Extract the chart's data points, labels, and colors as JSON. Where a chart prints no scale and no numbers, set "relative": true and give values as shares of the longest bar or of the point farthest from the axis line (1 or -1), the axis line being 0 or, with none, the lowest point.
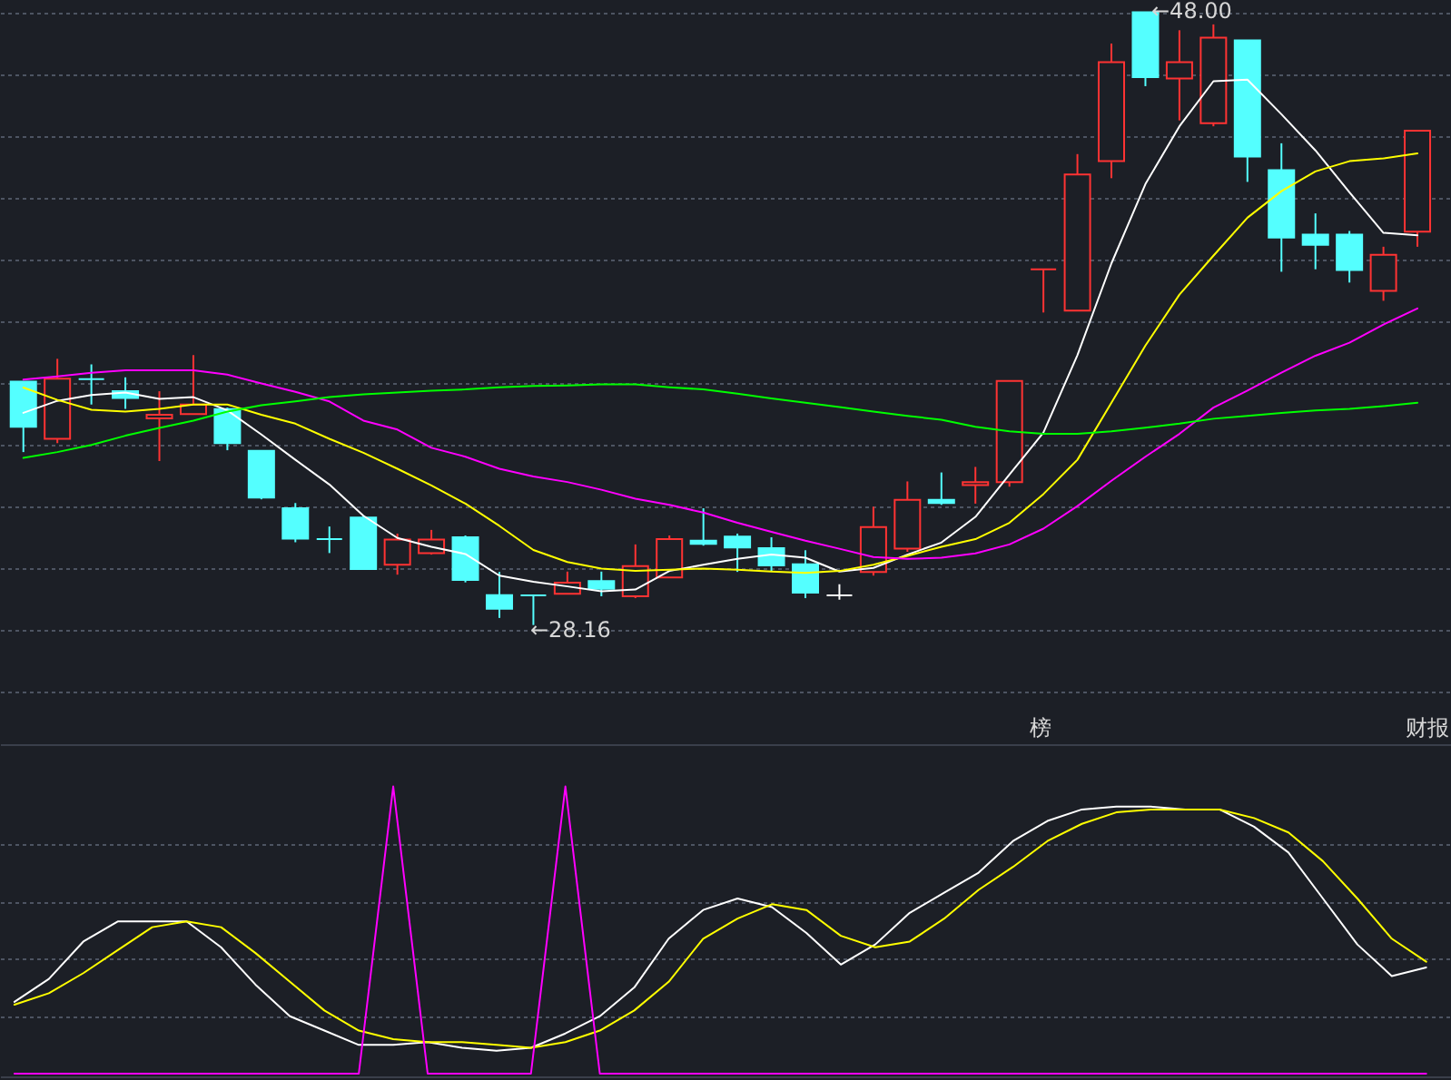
{
  "chart_data": [
    {
      "type": "candlestick",
      "categories": [
        null,
        null,
        null,
        null,
        null,
        null,
        null,
        null,
        null,
        null,
        null,
        null,
        null,
        null,
        null,
        null,
        null,
        null,
        null,
        null,
        null,
        null,
        null,
        null,
        null,
        null,
        null,
        null,
        null,
        null,
        null,
        null,
        null,
        null,
        null,
        null,
        null,
        null,
        null,
        null,
        null,
        null
      ],
      "ohlc": [
        [
          36.04,
          36.04,
          33.76,
          34.58
        ],
        [
          34.19,
          36.78,
          34.05,
          36.14
        ],
        [
          36.12,
          36.6,
          35.3,
          36.12
        ],
        [
          35.73,
          36.18,
          35.16,
          35.51
        ],
        [
          34.85,
          35.73,
          33.47,
          34.97
        ],
        [
          34.99,
          36.9,
          34.99,
          35.3
        ],
        [
          35.15,
          35.2,
          33.82,
          34.05
        ],
        [
          33.8,
          33.8,
          32.23,
          32.29
        ],
        [
          31.94,
          32.11,
          30.84,
          30.96
        ],
        [
          30.94,
          31.35,
          30.49,
          30.94
        ],
        [
          31.64,
          31.7,
          29.97,
          29.97
        ],
        [
          30.11,
          31.12,
          29.79,
          30.93
        ],
        [
          30.49,
          31.24,
          30.44,
          30.93
        ],
        [
          31.0,
          31.06,
          29.54,
          29.62
        ],
        [
          29.13,
          29.88,
          28.39,
          28.69
        ],
        [
          29.12,
          29.12,
          28.16,
          29.12
        ],
        [
          29.17,
          29.89,
          29.17,
          29.53
        ],
        [
          29.58,
          29.89,
          29.09,
          29.33
        ],
        [
          29.09,
          30.77,
          29.03,
          30.07
        ],
        [
          29.7,
          31.06,
          29.7,
          30.94
        ],
        [
          30.89,
          31.94,
          30.73,
          30.79
        ],
        [
          31.02,
          31.12,
          29.88,
          30.67
        ],
        [
          30.65,
          31.0,
          29.89,
          30.09
        ],
        [
          30.13,
          30.58,
          29.03,
          29.21
        ],
        [
          29.12,
          29.48,
          28.98,
          29.12
        ],
        [
          29.88,
          31.99,
          29.76,
          31.33
        ],
        [
          30.63,
          32.81,
          30.53,
          32.21
        ],
        [
          32.21,
          33.1,
          32.05,
          32.11
        ],
        [
          32.69,
          33.28,
          32.09,
          32.79
        ],
        [
          32.79,
          36.06,
          32.64,
          36.06
        ],
        [
          39.68,
          39.68,
          38.28,
          39.68
        ],
        [
          38.34,
          43.41,
          38.34,
          42.75
        ],
        [
          43.18,
          46.99,
          42.63,
          46.39
        ],
        [
          48.0,
          48.0,
          45.61,
          45.9
        ],
        [
          45.86,
          47.42,
          44.5,
          46.39
        ],
        [
          44.41,
          47.61,
          44.31,
          47.18
        ],
        [
          47.09,
          47.09,
          42.51,
          43.33
        ],
        [
          42.89,
          43.76,
          39.6,
          40.71
        ],
        [
          40.8,
          41.49,
          39.68,
          40.47
        ],
        [
          40.8,
          40.92,
          39.25,
          39.66
        ],
        [
          38.98,
          40.41,
          38.66,
          40.15
        ],
        [
          40.9,
          44.17,
          40.41,
          44.17
        ]
      ],
      "colors": [
        "#54ffff",
        "#ff3333",
        "#54ffff",
        "#54ffff",
        "#ff3333",
        "#ff3333",
        "#54ffff",
        "#54ffff",
        "#54ffff",
        "#54ffff",
        "#54ffff",
        "#ff3333",
        "#ff3333",
        "#54ffff",
        "#54ffff",
        "#54ffff",
        "#ff3333",
        "#54ffff",
        "#ff3333",
        "#ff3333",
        "#54ffff",
        "#54ffff",
        "#54ffff",
        "#54ffff",
        "#ffffff",
        "#ff3333",
        "#ff3333",
        "#54ffff",
        "#ff3333",
        "#ff3333",
        "#ff3333",
        "#ff3333",
        "#ff3333",
        "#54ffff",
        "#ff3333",
        "#ff3333",
        "#54ffff",
        "#54ffff",
        "#54ffff",
        "#54ffff",
        "#ff3333",
        "#ff3333"
      ],
      "series": [
        {
          "type": "line",
          "color": "#ffffff",
          "values": [
            35.03,
            35.42,
            35.61,
            35.69,
            35.48,
            35.54,
            35.11,
            34.33,
            33.51,
            32.71,
            31.7,
            30.98,
            30.69,
            30.46,
            29.76,
            29.56,
            29.41,
            29.25,
            29.31,
            29.91,
            30.11,
            30.3,
            30.44,
            30.34,
            29.89,
            30.01,
            30.44,
            30.83,
            31.66,
            33.03,
            34.39,
            36.9,
            39.87,
            42.44,
            44.31,
            45.77,
            45.82,
            44.7,
            43.53,
            42.17,
            40.86,
            40.78
          ]
        },
        {
          "type": "line",
          "color": "#ffff00",
          "values": [
            35.85,
            35.45,
            35.13,
            35.07,
            35.16,
            35.3,
            35.3,
            34.97,
            34.68,
            34.19,
            33.74,
            33.22,
            32.68,
            32.09,
            31.37,
            30.59,
            30.2,
            29.99,
            29.91,
            29.95,
            29.99,
            29.95,
            29.89,
            29.85,
            29.91,
            30.11,
            30.4,
            30.69,
            30.94,
            31.47,
            32.4,
            33.51,
            35.36,
            37.21,
            38.86,
            40.12,
            41.35,
            42.21,
            42.85,
            43.18,
            43.27,
            43.43
          ]
        },
        {
          "type": "line",
          "color": "#ff00ff",
          "values": [
            36.11,
            36.21,
            36.33,
            36.41,
            36.41,
            36.41,
            36.27,
            35.98,
            35.71,
            35.4,
            34.78,
            34.49,
            33.9,
            33.61,
            33.22,
            32.97,
            32.79,
            32.54,
            32.25,
            32.05,
            31.8,
            31.47,
            31.18,
            30.89,
            30.63,
            30.36,
            30.3,
            30.34,
            30.48,
            30.77,
            31.28,
            32.01,
            32.83,
            33.61,
            34.35,
            35.2,
            35.75,
            36.33,
            36.88,
            37.3,
            37.89,
            38.41
          ]
        },
        {
          "type": "line",
          "color": "#00ff00",
          "values": [
            33.57,
            33.76,
            33.99,
            34.29,
            34.54,
            34.78,
            35.07,
            35.28,
            35.4,
            35.54,
            35.63,
            35.69,
            35.75,
            35.79,
            35.86,
            35.9,
            35.92,
            35.95,
            35.95,
            35.86,
            35.79,
            35.65,
            35.5,
            35.36,
            35.22,
            35.07,
            34.93,
            34.81,
            34.58,
            34.43,
            34.35,
            34.35,
            34.43,
            34.55,
            34.68,
            34.84,
            34.93,
            35.03,
            35.11,
            35.16,
            35.25,
            35.36
          ]
        }
      ],
      "ylim": [
        24.3,
        48.4
      ],
      "yticks": [
        {
          "value": 26,
          "label": null
        },
        {
          "value": 28,
          "label": null
        },
        {
          "value": 30,
          "label": null
        },
        {
          "value": 32,
          "label": null
        },
        {
          "value": 34,
          "label": null
        },
        {
          "value": 36,
          "label": null
        },
        {
          "value": 38,
          "label": null
        },
        {
          "value": 40,
          "label": null
        },
        {
          "value": 42,
          "label": null
        },
        {
          "value": 44,
          "label": null
        },
        {
          "value": 46,
          "label": null
        },
        {
          "value": 48,
          "label": null
        }
      ],
      "grid": "y",
      "annotations": [
        "←48.00",
        "←28.16",
        "榜",
        "财报"
      ]
    },
    {
      "type": "line",
      "relative": true,
      "categories": [
        null,
        null,
        null,
        null,
        null,
        null,
        null,
        null,
        null,
        null,
        null,
        null,
        null,
        null,
        null,
        null,
        null,
        null,
        null,
        null,
        null,
        null,
        null,
        null,
        null,
        null,
        null,
        null,
        null,
        null,
        null,
        null,
        null,
        null,
        null,
        null,
        null,
        null,
        null,
        null,
        null,
        null
      ],
      "series": [
        {
          "color": "#ffffff",
          "values": [
            0.25,
            0.33,
            0.46,
            0.53,
            0.53,
            0.53,
            0.44,
            0.31,
            0.2,
            0.15,
            0.1,
            0.1,
            0.11,
            0.09,
            0.08,
            0.09,
            0.14,
            0.2,
            0.3,
            0.47,
            0.57,
            0.61,
            0.58,
            0.49,
            0.38,
            0.45,
            0.56,
            0.63,
            0.7,
            0.81,
            0.88,
            0.92,
            0.93,
            0.93,
            0.92,
            0.92,
            0.86,
            0.77,
            0.61,
            0.45,
            0.34,
            0.37
          ]
        },
        {
          "color": "#ffff00",
          "values": [
            0.24,
            0.28,
            0.35,
            0.43,
            0.51,
            0.53,
            0.51,
            0.42,
            0.32,
            0.22,
            0.15,
            0.12,
            0.11,
            0.11,
            0.1,
            0.09,
            0.11,
            0.15,
            0.22,
            0.32,
            0.47,
            0.54,
            0.59,
            0.57,
            0.48,
            0.44,
            0.46,
            0.54,
            0.64,
            0.72,
            0.81,
            0.87,
            0.91,
            0.92,
            0.92,
            0.92,
            0.89,
            0.84,
            0.74,
            0.61,
            0.47,
            0.39
          ]
        },
        {
          "color": "#ff00ff",
          "values": [
            0,
            0,
            0,
            0,
            0,
            0,
            0,
            0,
            0,
            0,
            0,
            1,
            0,
            0,
            0,
            0,
            1,
            0,
            0,
            0,
            0,
            0,
            0,
            0,
            0,
            0,
            0,
            0,
            0,
            0,
            0,
            0,
            0,
            0,
            0,
            0,
            0,
            0,
            0,
            0,
            0,
            0
          ]
        }
      ],
      "grid": "y"
    }
  ]
}
